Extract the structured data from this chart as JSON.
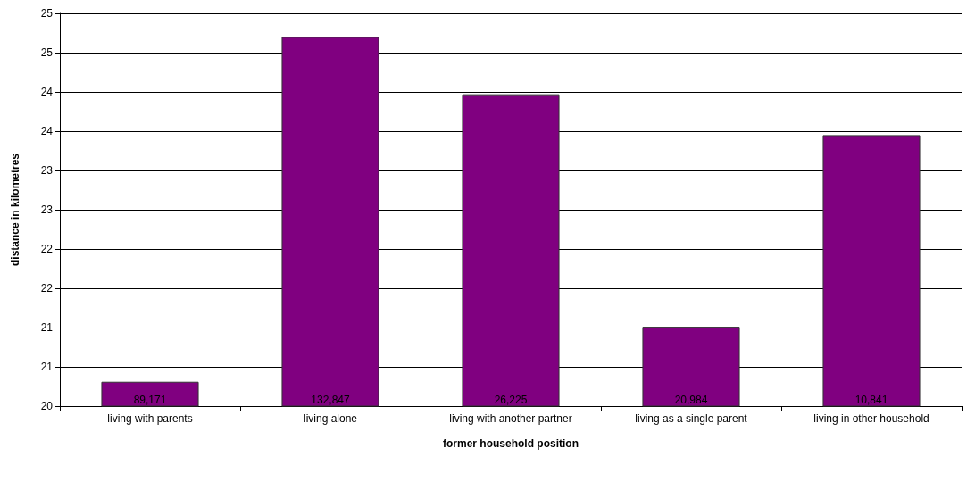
{
  "chart_data": {
    "type": "bar",
    "xlabel": "former household position",
    "ylabel": "distance in kilometres",
    "categories": [
      "living with parents",
      "living alone",
      "living with another partner",
      "living as a single parent",
      "living in other household"
    ],
    "values": [
      20.31,
      24.7,
      23.97,
      21.01,
      23.45
    ],
    "annotations": [
      {
        "text": "89,171",
        "x": "living with parents",
        "y": 20
      },
      {
        "text": "132,847",
        "x": "living alone",
        "y": 20
      },
      {
        "text": "26,225",
        "x": "living with another partner",
        "y": 20
      },
      {
        "text": "20,984",
        "x": "living as a single parent",
        "y": 20
      },
      {
        "text": "10,841",
        "x": "living in other household",
        "y": 20
      }
    ],
    "color": "#800080",
    "ylim": [
      20,
      25
    ],
    "yticks": [
      20,
      {
        "value": 20.5,
        "label": "21"
      },
      21,
      {
        "value": 21.5,
        "label": "22"
      },
      22,
      {
        "value": 22.5,
        "label": "23"
      },
      23,
      {
        "value": 23.5,
        "label": "24"
      },
      24,
      {
        "value": 24.5,
        "label": "25"
      },
      25
    ],
    "grid": "y"
  }
}
